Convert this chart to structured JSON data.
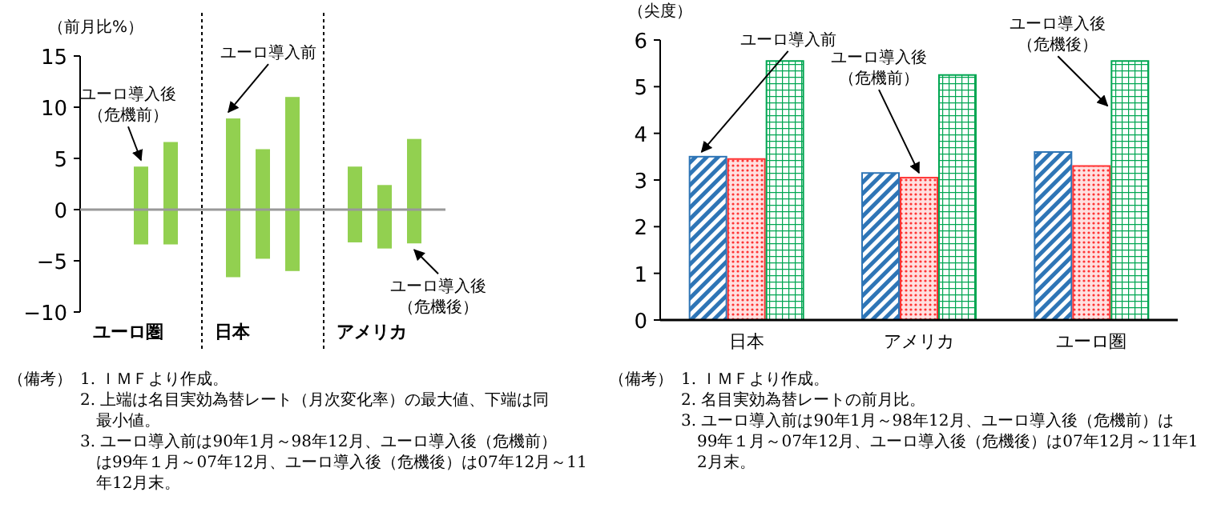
{
  "chart_data": [
    {
      "type": "bar",
      "ylabel": "（前月比%）",
      "categories": [
        "ユーロ圏",
        "日本",
        "アメリカ"
      ],
      "ylim": [
        -10,
        15
      ],
      "yticks": [
        -10,
        -5,
        0,
        5,
        10,
        15
      ],
      "series": [
        {
          "name": "ユーロ導入前",
          "color": "#92d050",
          "values": [
            null,
            15.5,
            7.4
          ],
          "base": [
            null,
            -6.6,
            -3.2
          ]
        },
        {
          "name": "ユーロ導入後（危機前）",
          "color": "#92d050",
          "values": [
            7.6,
            10.7,
            6.2
          ],
          "base": [
            -3.4,
            -4.8,
            -3.8
          ]
        },
        {
          "name": "ユーロ導入後（危機後）",
          "color": "#92d050",
          "values": [
            10.0,
            17.0,
            10.2
          ],
          "base": [
            -3.4,
            -6.0,
            -3.3
          ]
        }
      ],
      "annotations": [
        "（備考）",
        "1. ＩＭＦより作成。",
        "2. 上端は名目実効為替レート（月次変化率）の最大値、下端は同最小値。",
        "3. ユーロ導入前は90年1月～98年12月、ユーロ導入後（危機前）は99年１月～07年12月、ユーロ導入後（危機後）は07年12月～11年12月末。"
      ]
    },
    {
      "type": "bar",
      "ylabel": "（尖度）",
      "categories": [
        "日本",
        "アメリカ",
        "ユーロ圏"
      ],
      "ylim": [
        0,
        6
      ],
      "yticks": [
        0,
        1,
        2,
        3,
        4,
        5,
        6
      ],
      "series": [
        {
          "name": "ユーロ導入前",
          "color": "#2e75b6",
          "values": [
            3.5,
            3.15,
            3.6
          ]
        },
        {
          "name": "ユーロ導入後（危機前）",
          "color": "#ff3333",
          "values": [
            3.45,
            3.05,
            3.3
          ]
        },
        {
          "name": "ユーロ導入後（危機後）",
          "color": "#00a651",
          "values": [
            5.55,
            5.25,
            5.55
          ]
        }
      ],
      "annotations": [
        "（備考）",
        "1. ＩＭＦより作成。",
        "2. 名目実効為替レートの前月比。",
        "3. ユーロ導入前は90年1月～98年12月、ユーロ導入後（危機前）は99年１月～07年12月、ユーロ導入後（危機後）は07年12月～11年12月末。"
      ]
    }
  ]
}
